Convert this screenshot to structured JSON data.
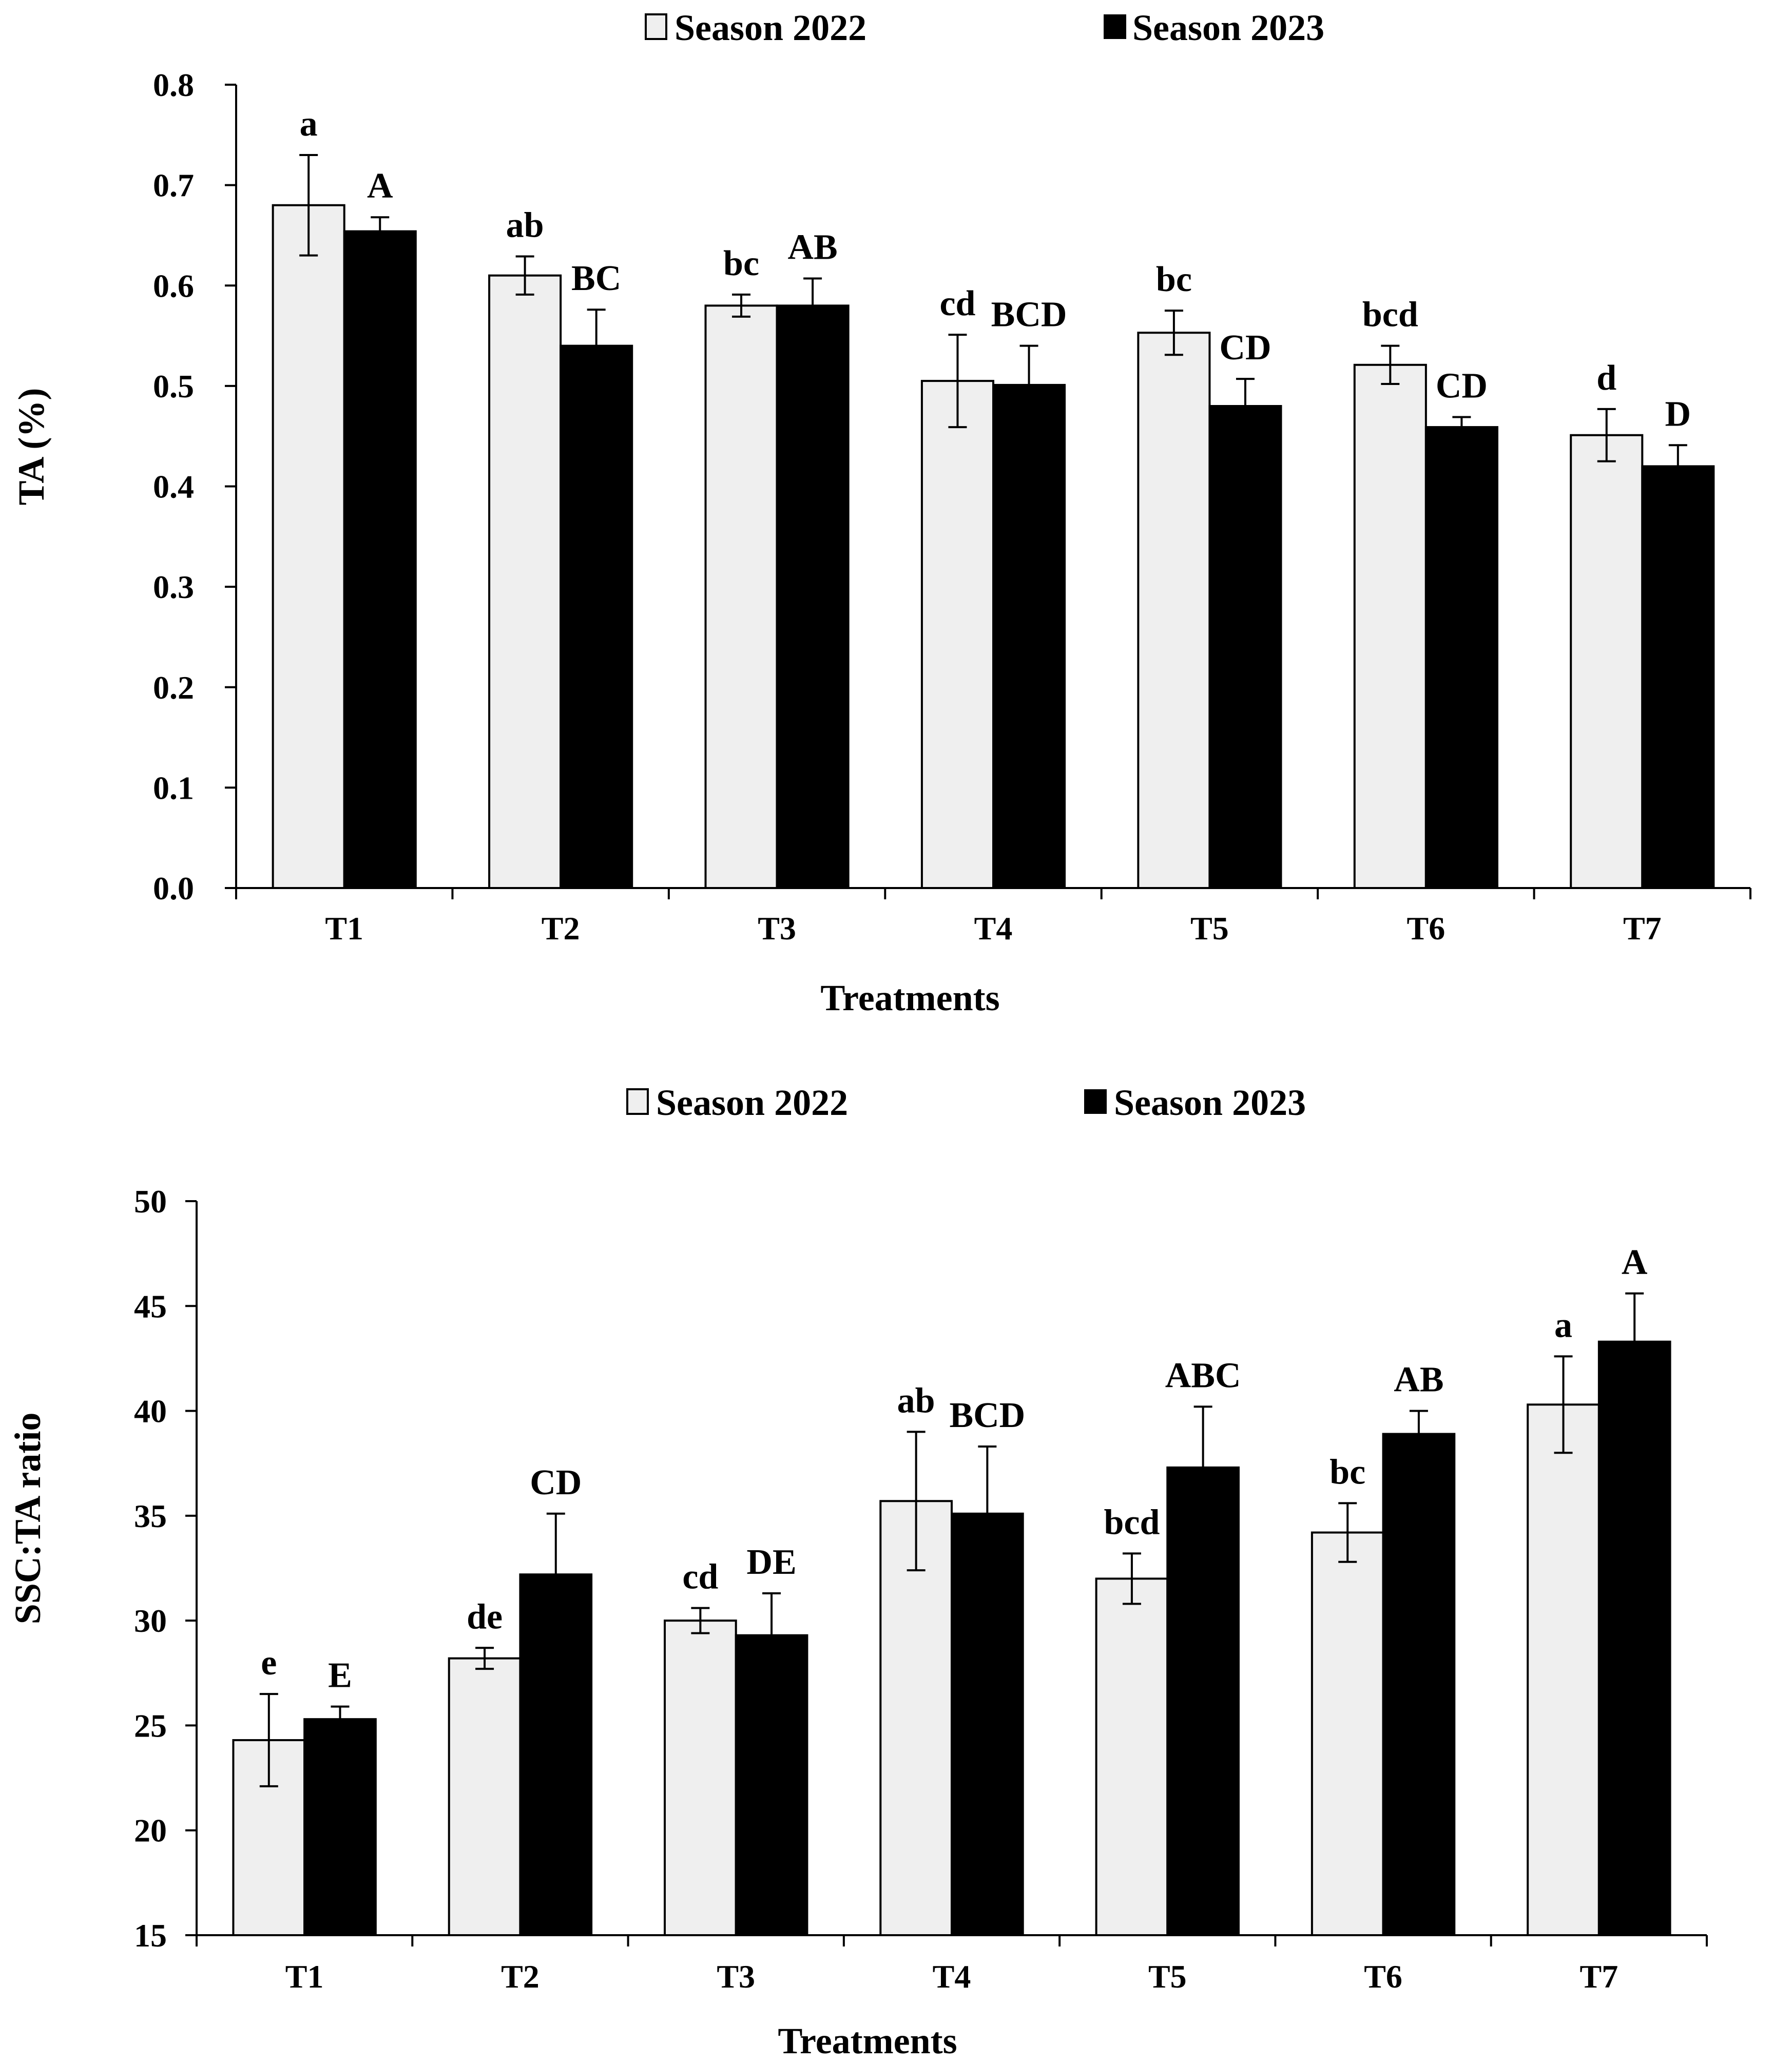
{
  "chart_data": [
    {
      "type": "bar",
      "title": "",
      "xlabel": "Treatments",
      "ylabel": "TA (%)",
      "ylim": [
        0,
        0.8
      ],
      "yticks": [
        "0.0",
        "0.1",
        "0.2",
        "0.3",
        "0.4",
        "0.5",
        "0.6",
        "0.7",
        "0.8"
      ],
      "categories": [
        "T1",
        "T2",
        "T3",
        "T4",
        "T5",
        "T6",
        "T7"
      ],
      "legend_position": "top",
      "series": [
        {
          "name": "Season 2022",
          "color": "#efefef",
          "values": [
            0.68,
            0.61,
            0.58,
            0.505,
            0.553,
            0.521,
            0.451
          ],
          "errors": [
            0.05,
            0.019,
            0.011,
            0.046,
            0.022,
            0.019,
            0.026
          ],
          "letters": [
            "a",
            "ab",
            "bc",
            "cd",
            "bc",
            "bcd",
            "d"
          ]
        },
        {
          "name": "Season 2023",
          "color": "#000000",
          "values": [
            0.654,
            0.54,
            0.58,
            0.501,
            0.48,
            0.459,
            0.42
          ],
          "errors": [
            0.014,
            0.036,
            0.027,
            0.039,
            0.027,
            0.01,
            0.021
          ],
          "letters": [
            "A",
            "BC",
            "AB",
            "BCD",
            "CD",
            "CD",
            "D"
          ]
        }
      ]
    },
    {
      "type": "bar",
      "title": "",
      "xlabel": "Treatments",
      "ylabel": "SSC:TA ratio",
      "ylim": [
        15,
        50
      ],
      "yticks": [
        "15",
        "20",
        "25",
        "30",
        "35",
        "40",
        "45",
        "50"
      ],
      "categories": [
        "T1",
        "T2",
        "T3",
        "T4",
        "T5",
        "T6",
        "T7"
      ],
      "legend_position": "top",
      "series": [
        {
          "name": "Season 2022",
          "color": "#efefef",
          "values": [
            24.3,
            28.2,
            30.0,
            35.7,
            32.0,
            34.2,
            40.3
          ],
          "errors": [
            2.2,
            0.5,
            0.6,
            3.3,
            1.2,
            1.4,
            2.3
          ],
          "letters": [
            "e",
            "de",
            "cd",
            "ab",
            "bcd",
            "bc",
            "a"
          ]
        },
        {
          "name": "Season 2023",
          "color": "#000000",
          "values": [
            25.3,
            32.2,
            29.3,
            35.1,
            37.3,
            38.9,
            43.3
          ],
          "errors": [
            0.6,
            2.9,
            2.0,
            3.2,
            2.9,
            1.1,
            2.3
          ],
          "letters": [
            "E",
            "CD",
            "DE",
            "BCD",
            "ABC",
            "AB",
            "A"
          ]
        }
      ]
    }
  ]
}
